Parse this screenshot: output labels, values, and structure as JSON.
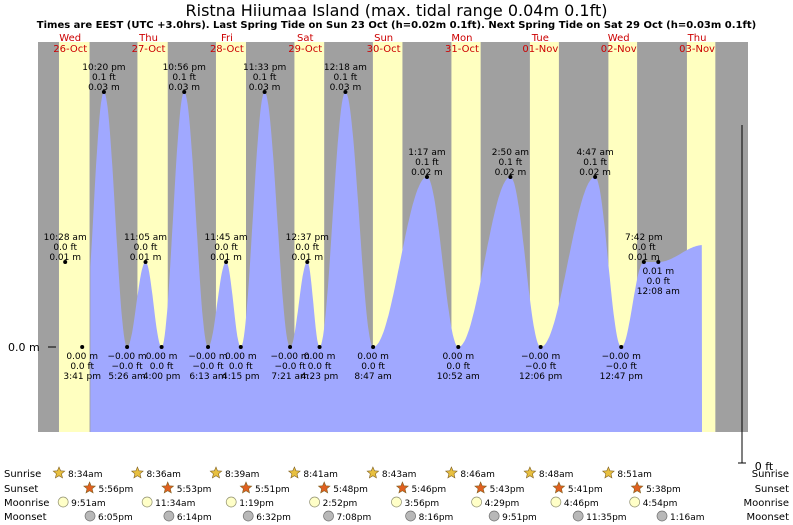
{
  "title": "Ristna Hiiumaa Island (max. tidal range 0.04m 0.1ft)",
  "subtitle": "Times are EEST (UTC +3.0hrs). Last Spring Tide on Sun 23 Oct (h=0.02m 0.1ft). Next Spring Tide on Sat 29 Oct (h=0.03m 0.1ft)",
  "colors": {
    "night": "#a0a0a0",
    "day": "#ffffc0",
    "water": "#a0a8ff",
    "dayText": "#cc0000",
    "sun": "#e8c040",
    "sunset": "#e06020",
    "moon": "#ffffc8",
    "moonset": "#b8b8b8"
  },
  "chart_data": {
    "type": "area",
    "ylabel_zero": "0.0 m",
    "ylabel_ft": "0 ft",
    "days": [
      {
        "dow": "Wed",
        "date": "26-Oct"
      },
      {
        "dow": "Thu",
        "date": "27-Oct"
      },
      {
        "dow": "Fri",
        "date": "28-Oct"
      },
      {
        "dow": "Sat",
        "date": "29-Oct"
      },
      {
        "dow": "Sun",
        "date": "30-Oct"
      },
      {
        "dow": "Mon",
        "date": "31-Oct"
      },
      {
        "dow": "Tue",
        "date": "01-Nov"
      },
      {
        "dow": "Wed",
        "date": "02-Nov"
      },
      {
        "dow": "Thu",
        "date": "03-Nov"
      }
    ],
    "tide_events": [
      {
        "kind": "high",
        "time": "10:28 am",
        "ft": "0.0 ft",
        "m": "0.01 m",
        "day_hours": 10.47,
        "height_m": 0.01
      },
      {
        "kind": "high",
        "time": "10:20 pm",
        "ft": "0.1 ft",
        "m": "0.03 m",
        "day_hours": 22.33,
        "height_m": 0.03
      },
      {
        "kind": "low",
        "time": "3:41 pm",
        "ft": "0.0 ft",
        "m": "0.00 m",
        "day_hours": 15.68,
        "height_m": 0.0
      },
      {
        "kind": "low",
        "time": "5:26 am",
        "ft": "−0.0 ft",
        "m": "−0.00 m",
        "day_hours": 29.43,
        "height_m": 0.0
      },
      {
        "kind": "high",
        "time": "11:05 am",
        "ft": "0.0 ft",
        "m": "0.01 m",
        "day_hours": 35.08,
        "height_m": 0.01
      },
      {
        "kind": "low",
        "time": "4:00 pm",
        "ft": "0.0 ft",
        "m": "0.00 m",
        "day_hours": 40.0,
        "height_m": 0.0
      },
      {
        "kind": "high",
        "time": "10:56 pm",
        "ft": "0.1 ft",
        "m": "0.03 m",
        "day_hours": 46.93,
        "height_m": 0.03
      },
      {
        "kind": "low",
        "time": "6:13 am",
        "ft": "−0.0 ft",
        "m": "−0.00 m",
        "day_hours": 54.22,
        "height_m": 0.0
      },
      {
        "kind": "high",
        "time": "11:45 am",
        "ft": "0.0 ft",
        "m": "0.01 m",
        "day_hours": 59.75,
        "height_m": 0.01
      },
      {
        "kind": "low",
        "time": "4:15 pm",
        "ft": "0.0 ft",
        "m": "0.00 m",
        "day_hours": 64.25,
        "height_m": 0.0
      },
      {
        "kind": "high",
        "time": "11:33 pm",
        "ft": "0.1 ft",
        "m": "0.03 m",
        "day_hours": 71.55,
        "height_m": 0.03
      },
      {
        "kind": "low",
        "time": "7:21 am",
        "ft": "−0.0 ft",
        "m": "−0.00 m",
        "day_hours": 79.35,
        "height_m": 0.0
      },
      {
        "kind": "high",
        "time": "12:37 pm",
        "ft": "0.0 ft",
        "m": "0.01 m",
        "day_hours": 84.62,
        "height_m": 0.01
      },
      {
        "kind": "low",
        "time": "4:23 pm",
        "ft": "0.0 ft",
        "m": "0.00 m",
        "day_hours": 88.38,
        "height_m": 0.0
      },
      {
        "kind": "high",
        "time": "12:18 am",
        "ft": "0.1 ft",
        "m": "0.03 m",
        "day_hours": 96.3,
        "height_m": 0.03
      },
      {
        "kind": "low",
        "time": "8:47 am",
        "ft": "0.0 ft",
        "m": "0.00 m",
        "day_hours": 104.78,
        "height_m": 0.0
      },
      {
        "kind": "high",
        "time": "1:17 am",
        "ft": "0.1 ft",
        "m": "0.02 m",
        "day_hours": 121.28,
        "height_m": 0.02
      },
      {
        "kind": "low",
        "time": "10:52 am",
        "ft": "0.0 ft",
        "m": "0.00 m",
        "day_hours": 130.87,
        "height_m": 0.0
      },
      {
        "kind": "high",
        "time": "2:50 am",
        "ft": "0.1 ft",
        "m": "0.02 m",
        "day_hours": 146.83,
        "height_m": 0.02
      },
      {
        "kind": "low",
        "time": "12:06 pm",
        "ft": "−0.0 ft",
        "m": "−0.00 m",
        "day_hours": 156.1,
        "height_m": 0.0
      },
      {
        "kind": "high",
        "time": "4:47 am",
        "ft": "0.1 ft",
        "m": "0.02 m",
        "day_hours": 172.78,
        "height_m": 0.02
      },
      {
        "kind": "low",
        "time": "12:47 pm",
        "ft": "−0.0 ft",
        "m": "−0.00 m",
        "day_hours": 180.78,
        "height_m": 0.0
      },
      {
        "kind": "high",
        "time": "7:42 pm",
        "ft": "0.0 ft",
        "m": "0.01 m",
        "day_hours": 187.7,
        "height_m": 0.01
      },
      {
        "kind": "low",
        "time": "12:08 am",
        "ft": "0.0 ft",
        "m": "0.01 m",
        "day_hours": 192.13,
        "height_m": 0.01
      }
    ],
    "almanac": {
      "labels": [
        "Sunrise",
        "Sunset",
        "Moonrise",
        "Moonset"
      ],
      "rows": [
        {
          "sunrise": "8:34am",
          "sunset": "5:56pm",
          "moonrise": "9:51am",
          "moonset": "6:05pm"
        },
        {
          "sunrise": "8:36am",
          "sunset": "5:53pm",
          "moonrise": "11:34am",
          "moonset": "6:14pm"
        },
        {
          "sunrise": "8:39am",
          "sunset": "5:51pm",
          "moonrise": "1:19pm",
          "moonset": "6:32pm"
        },
        {
          "sunrise": "8:41am",
          "sunset": "5:48pm",
          "moonrise": "2:52pm",
          "moonset": "7:08pm"
        },
        {
          "sunrise": "8:43am",
          "sunset": "5:46pm",
          "moonrise": "3:56pm",
          "moonset": "8:16pm"
        },
        {
          "sunrise": "8:46am",
          "sunset": "5:43pm",
          "moonrise": "4:29pm",
          "moonset": "9:51pm"
        },
        {
          "sunrise": "8:48am",
          "sunset": "5:41pm",
          "moonrise": "4:46pm",
          "moonset": "11:35pm"
        },
        {
          "sunrise": "8:51am",
          "sunset": "5:38pm",
          "moonrise": "4:54pm",
          "moonset": "1:16am"
        }
      ]
    }
  }
}
